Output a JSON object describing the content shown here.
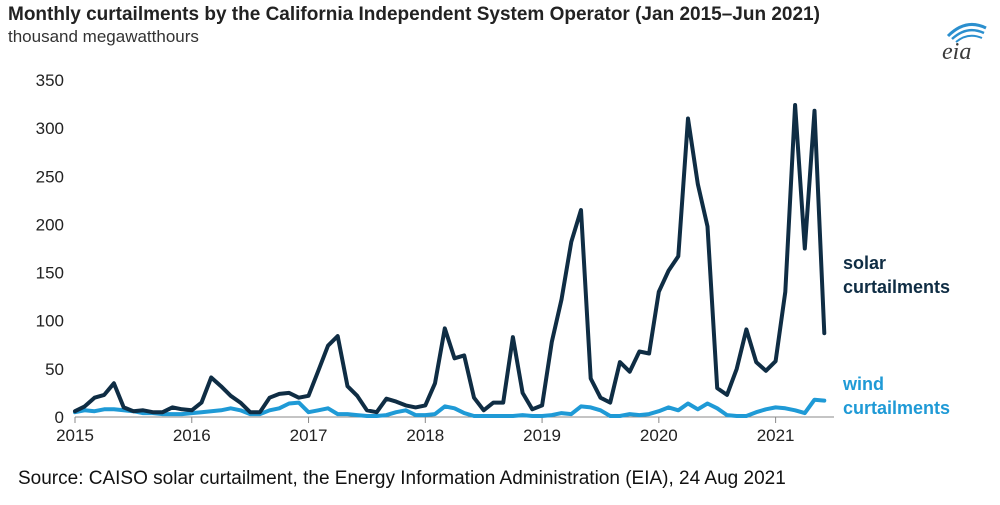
{
  "header": {
    "title": "Monthly curtailments by the California Independent System Operator (Jan 2015–Jun 2021)",
    "subtitle": "thousand megawatthours",
    "logo_text": "eia"
  },
  "footer": {
    "source": "Source: CAISO solar curtailment, the Energy Information Administration (EIA), 24 Aug 2021"
  },
  "colors": {
    "solar": "#0f2d44",
    "wind": "#1f9ad6",
    "axis": "#888888",
    "logo_arc": "#2b8fce",
    "logo_text": "#3b3b3b"
  },
  "chart_data": {
    "type": "line",
    "title": "Monthly curtailments by the California Independent System Operator (Jan 2015–Jun 2021)",
    "ylabel": "thousand megawatthours",
    "xlabel": "",
    "ylim": [
      0,
      350
    ],
    "yticks": [
      0,
      50,
      100,
      150,
      200,
      250,
      300,
      350
    ],
    "xlim": [
      "2015-01",
      "2021-07"
    ],
    "xticks": [
      "2015",
      "2016",
      "2017",
      "2018",
      "2019",
      "2020",
      "2021"
    ],
    "grid": false,
    "series": [
      {
        "name": "solar curtailments",
        "label_lines": [
          "solar",
          "curtailments"
        ],
        "start": "2015-01",
        "values": [
          6,
          11,
          20,
          23,
          35,
          10,
          6,
          7,
          5,
          5,
          10,
          8,
          7,
          15,
          41,
          32,
          22,
          15,
          5,
          5,
          20,
          24,
          25,
          20,
          22,
          48,
          74,
          84,
          32,
          22,
          7,
          5,
          19,
          16,
          12,
          10,
          12,
          35,
          92,
          61,
          64,
          20,
          7,
          15,
          15,
          83,
          25,
          8,
          12,
          78,
          122,
          182,
          215,
          40,
          20,
          15,
          57,
          47,
          68,
          66,
          130,
          152,
          167,
          310,
          242,
          198,
          30,
          23,
          50,
          91,
          57,
          48,
          58,
          130,
          324,
          175,
          318,
          87
        ]
      },
      {
        "name": "wind curtailments",
        "label_lines": [
          "wind",
          "curtailments"
        ],
        "start": "2015-01",
        "values": [
          5,
          7,
          6,
          8,
          8,
          7,
          6,
          4,
          4,
          3,
          3,
          3,
          4,
          5,
          6,
          7,
          9,
          7,
          3,
          3,
          7,
          9,
          14,
          15,
          5,
          7,
          9,
          3,
          3,
          2,
          1,
          1,
          2,
          5,
          7,
          2,
          2,
          3,
          11,
          9,
          4,
          1,
          1,
          1,
          1,
          1,
          2,
          1,
          1,
          2,
          4,
          3,
          11,
          10,
          7,
          1,
          1,
          3,
          2,
          3,
          6,
          10,
          7,
          14,
          8,
          14,
          9,
          2,
          1,
          1,
          5,
          8,
          10,
          9,
          7,
          4,
          18,
          17
        ]
      }
    ]
  }
}
